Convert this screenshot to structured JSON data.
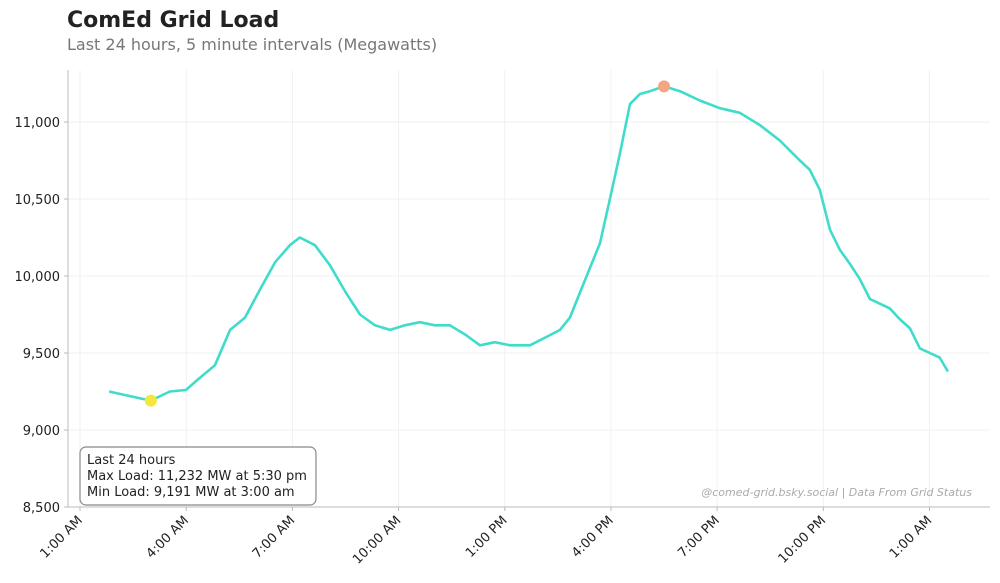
{
  "chart_data": {
    "type": "line",
    "title": "ComEd Grid Load",
    "subtitle": "Last 24 hours, 5 minute intervals (Megawatts)",
    "x": [
      0.82,
      1.41,
      2.0,
      2.54,
      2.99,
      3.39,
      3.81,
      4.24,
      4.66,
      5.08,
      5.51,
      5.93,
      6.21,
      6.64,
      7.06,
      7.49,
      7.91,
      8.33,
      8.76,
      9.18,
      9.6,
      10.03,
      10.45,
      10.88,
      11.3,
      11.72,
      12.15,
      12.71,
      13.14,
      13.56,
      13.84,
      14.12,
      14.69,
      14.97,
      15.25,
      15.54,
      15.82,
      16.1,
      16.5,
      16.95,
      17.51,
      18.08,
      18.64,
      19.21,
      19.77,
      20.34,
      20.62,
      20.9,
      21.19,
      21.47,
      21.75,
      22.03,
      22.32,
      22.6,
      22.88,
      23.16,
      23.45,
      23.73,
      24.01,
      24.29,
      24.52
    ],
    "series": [
      {
        "name": "Load",
        "color": "#40dccb",
        "values": [
          9250,
          9220,
          9191,
          9250,
          9260,
          9340,
          9420,
          9650,
          9730,
          9910,
          10090,
          10200,
          10250,
          10200,
          10070,
          9900,
          9750,
          9680,
          9650,
          9680,
          9700,
          9680,
          9680,
          9620,
          9550,
          9570,
          9550,
          9550,
          9600,
          9650,
          9730,
          9890,
          10214,
          10500,
          10792,
          11117,
          11182,
          11200,
          11232,
          11200,
          11140,
          11090,
          11060,
          10980,
          10880,
          10750,
          10690,
          10560,
          10300,
          10170,
          10080,
          9980,
          9850,
          9820,
          9790,
          9720,
          9660,
          9530,
          9500,
          9470,
          9380
        ]
      }
    ],
    "highlights": [
      {
        "x": 16.5,
        "y": 11232,
        "color": "#f4a582"
      },
      {
        "x": 2.0,
        "y": 9191,
        "color": "#f5e63c"
      }
    ],
    "xlim": [
      -0.34,
      25.71
    ],
    "ylim": [
      8500,
      11338
    ],
    "xticks": [
      {
        "value": 0,
        "label": "1:00 AM"
      },
      {
        "value": 3,
        "label": "4:00 AM"
      },
      {
        "value": 6,
        "label": "7:00 AM"
      },
      {
        "value": 9,
        "label": "10:00 AM"
      },
      {
        "value": 12,
        "label": "1:00 PM"
      },
      {
        "value": 15,
        "label": "4:00 PM"
      },
      {
        "value": 18,
        "label": "7:00 PM"
      },
      {
        "value": 21,
        "label": "10:00 PM"
      },
      {
        "value": 24,
        "label": "1:00 AM"
      }
    ],
    "yticks": [
      {
        "value": 8500,
        "label": "8,500"
      },
      {
        "value": 9000,
        "label": "9,000"
      },
      {
        "value": 9500,
        "label": "9,500"
      },
      {
        "value": 10000,
        "label": "10,000"
      },
      {
        "value": 10500,
        "label": "10,500"
      },
      {
        "value": 11000,
        "label": "11,000"
      }
    ],
    "grid": true,
    "annotation": [
      "Last 24 hours",
      "Max Load: 11,232 MW at 5:30 pm",
      "Min Load: 9,191 MW at 3:00 am"
    ],
    "credit": "@comed-grid.bsky.social | Data From Grid Status"
  }
}
